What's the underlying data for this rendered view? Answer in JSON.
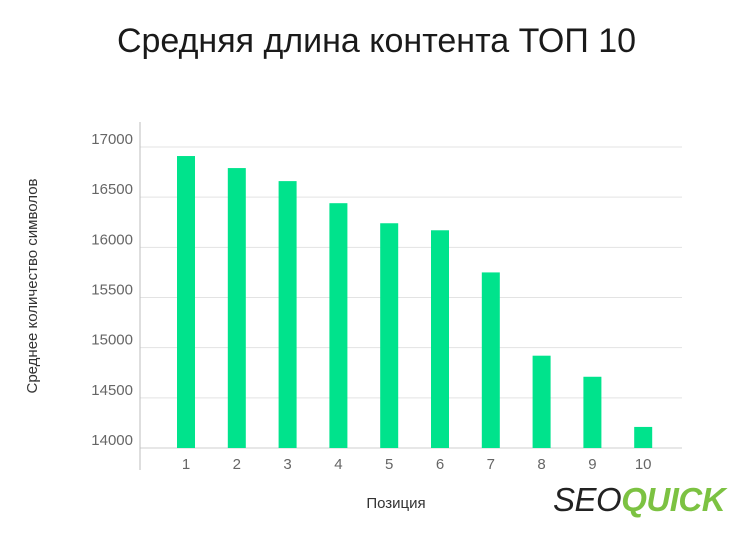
{
  "chart_data": {
    "type": "bar",
    "title": "Средняя длина контента ТОП 10",
    "xlabel": "Позиция",
    "ylabel": "Среднее количество символов",
    "categories": [
      "1",
      "2",
      "3",
      "4",
      "5",
      "6",
      "7",
      "8",
      "9",
      "10"
    ],
    "values": [
      16910,
      16790,
      16660,
      16440,
      16240,
      16170,
      15750,
      14920,
      14710,
      14210
    ],
    "ylim": [
      14000,
      17000
    ],
    "yticks": [
      14000,
      14500,
      15000,
      15500,
      16000,
      16500,
      17000
    ],
    "grid": true,
    "bar_color": "#00e38c",
    "grid_color": "#e3e3e3"
  },
  "logo": {
    "part1": "SEO",
    "part2": "QUICK",
    "accent": "#7cc242"
  }
}
